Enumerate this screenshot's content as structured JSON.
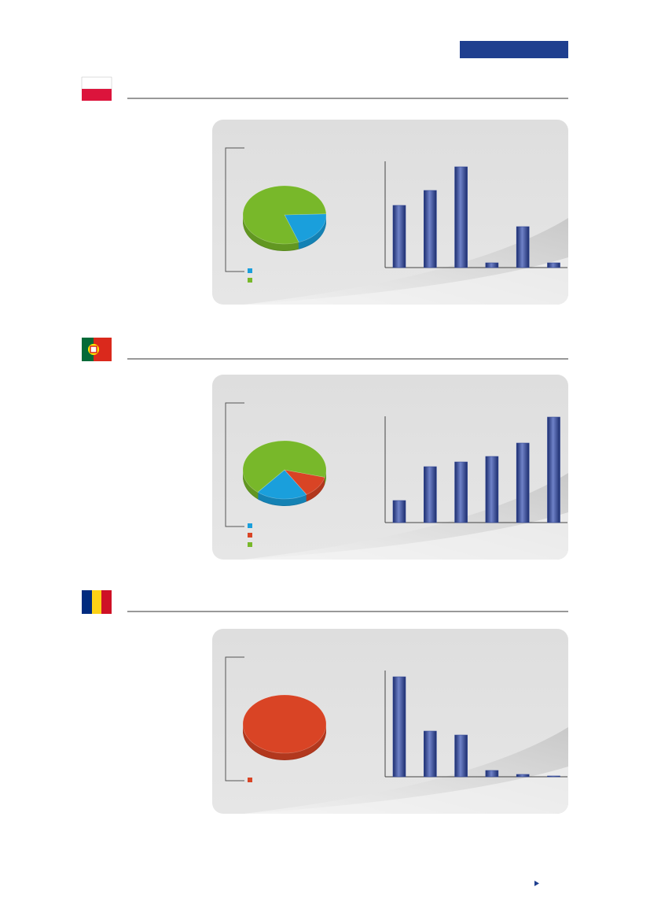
{
  "chart_data": [
    {
      "type": "pie",
      "values": [
        20,
        80
      ],
      "colors": [
        "#1a9fdc",
        "#78b82a"
      ]
    },
    {
      "type": "bar",
      "values": [
        79,
        98,
        128,
        6,
        52,
        6
      ],
      "color": "#2f4595",
      "ylim": [
        0,
        135
      ]
    },
    {
      "type": "pie",
      "values": [
        20,
        12,
        68
      ],
      "colors": [
        "#1a9fdc",
        "#d94425",
        "#78b82a"
      ]
    },
    {
      "type": "bar",
      "values": [
        28,
        71,
        77,
        84,
        101,
        134
      ],
      "color": "#2f4595",
      "ylim": [
        0,
        135
      ]
    },
    {
      "type": "pie",
      "values": [
        100
      ],
      "colors": [
        "#d94425"
      ]
    },
    {
      "type": "bar",
      "values": [
        127,
        58,
        53,
        8,
        3,
        1
      ],
      "color": "#2f4595",
      "ylim": [
        0,
        135
      ]
    }
  ]
}
